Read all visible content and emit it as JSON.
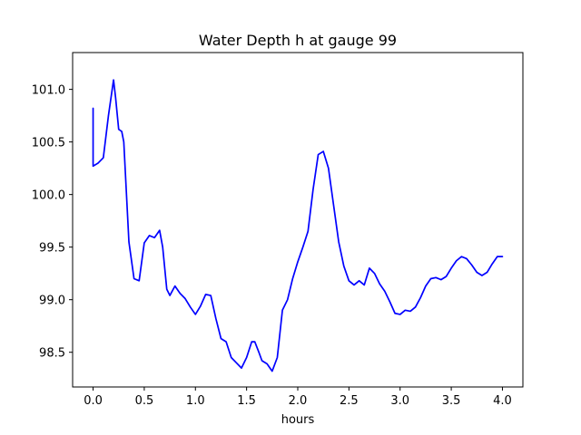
{
  "chart_data": {
    "type": "line",
    "title": "Water Depth h at gauge 99",
    "xlabel": "hours",
    "ylabel": "",
    "xlim": [
      -0.2,
      4.2
    ],
    "ylim": [
      98.17,
      101.35
    ],
    "xticks": [
      0.0,
      0.5,
      1.0,
      1.5,
      2.0,
      2.5,
      3.0,
      3.5,
      4.0
    ],
    "xtick_labels": [
      "0.0",
      "0.5",
      "1.0",
      "1.5",
      "2.0",
      "2.5",
      "3.0",
      "3.5",
      "4.0"
    ],
    "yticks": [
      98.5,
      99.0,
      99.5,
      100.0,
      100.5,
      101.0
    ],
    "ytick_labels": [
      "98.5",
      "99.0",
      "99.5",
      "100.0",
      "100.5",
      "101.0"
    ],
    "grid": false,
    "series": [
      {
        "color": "#0000ff",
        "x": [
          0.0,
          0.0,
          0.05,
          0.1,
          0.15,
          0.2,
          0.22,
          0.25,
          0.28,
          0.3,
          0.35,
          0.4,
          0.45,
          0.5,
          0.55,
          0.6,
          0.65,
          0.68,
          0.72,
          0.75,
          0.8,
          0.85,
          0.9,
          0.95,
          1.0,
          1.05,
          1.1,
          1.15,
          1.2,
          1.25,
          1.3,
          1.35,
          1.4,
          1.45,
          1.5,
          1.55,
          1.58,
          1.62,
          1.65,
          1.7,
          1.75,
          1.8,
          1.85,
          1.9,
          1.95,
          2.0,
          2.05,
          2.1,
          2.15,
          2.2,
          2.25,
          2.3,
          2.35,
          2.4,
          2.45,
          2.5,
          2.55,
          2.6,
          2.65,
          2.7,
          2.75,
          2.8,
          2.85,
          2.9,
          2.95,
          3.0,
          3.05,
          3.1,
          3.15,
          3.2,
          3.25,
          3.3,
          3.35,
          3.4,
          3.45,
          3.5,
          3.55,
          3.6,
          3.65,
          3.7,
          3.75,
          3.8,
          3.85,
          3.9,
          3.95,
          4.0
        ],
        "y": [
          100.82,
          100.27,
          100.3,
          100.35,
          100.75,
          101.09,
          100.92,
          100.62,
          100.6,
          100.5,
          99.55,
          99.2,
          99.18,
          99.54,
          99.61,
          99.59,
          99.66,
          99.5,
          99.1,
          99.04,
          99.13,
          99.06,
          99.01,
          98.93,
          98.86,
          98.94,
          99.05,
          99.04,
          98.82,
          98.63,
          98.6,
          98.45,
          98.4,
          98.35,
          98.45,
          98.6,
          98.6,
          98.5,
          98.42,
          98.39,
          98.32,
          98.45,
          98.9,
          99.0,
          99.2,
          99.36,
          99.5,
          99.65,
          100.05,
          100.38,
          100.41,
          100.25,
          99.9,
          99.55,
          99.32,
          99.18,
          99.14,
          99.18,
          99.14,
          99.3,
          99.25,
          99.15,
          99.08,
          98.98,
          98.87,
          98.86,
          98.9,
          98.89,
          98.93,
          99.02,
          99.13,
          99.2,
          99.21,
          99.19,
          99.22,
          99.3,
          99.37,
          99.41,
          99.39,
          99.33,
          99.26,
          99.23,
          99.26,
          99.34,
          99.41,
          99.41
        ]
      }
    ]
  }
}
